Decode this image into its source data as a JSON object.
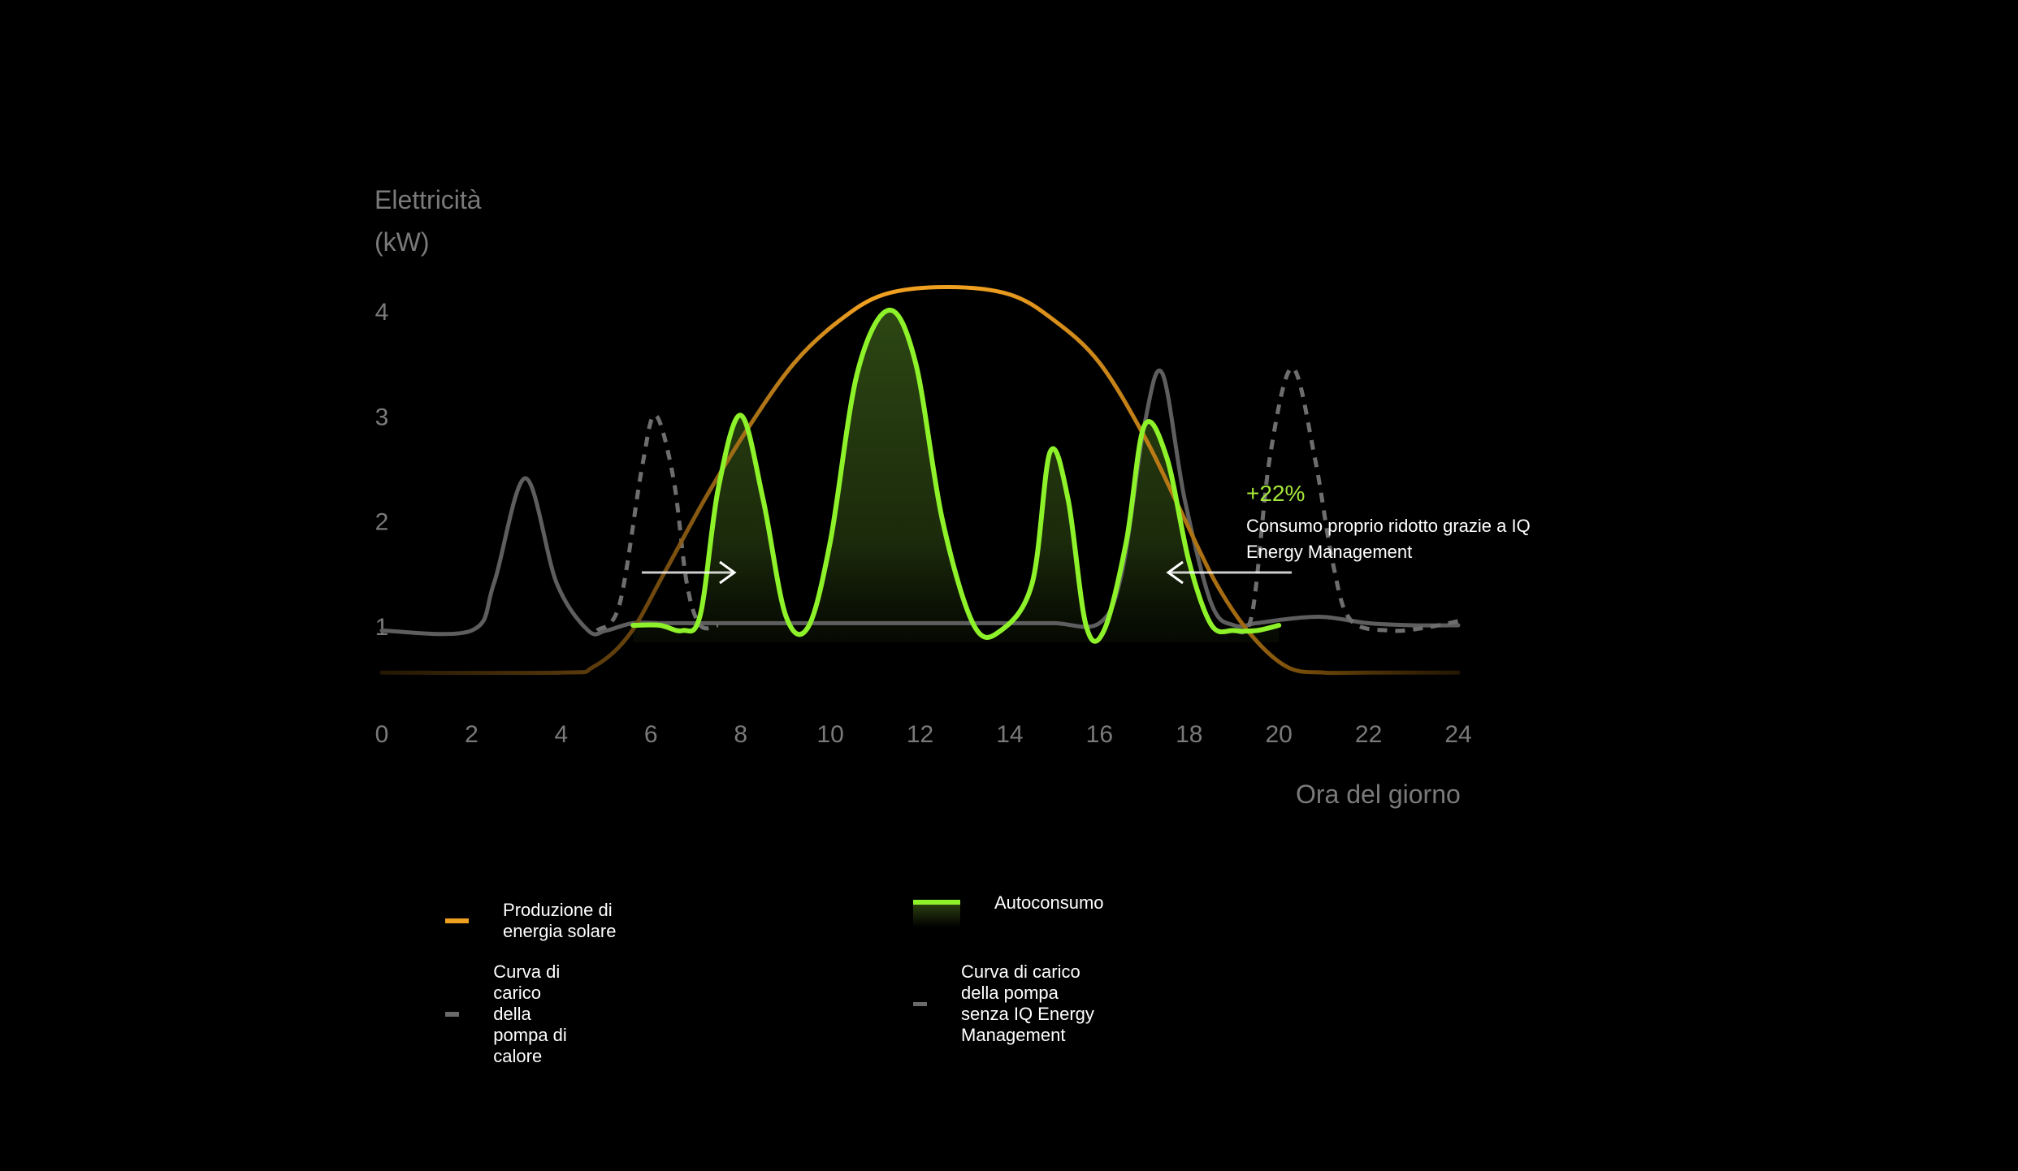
{
  "chart_data": {
    "type": "line",
    "ylabel_line1": "Elettricità",
    "ylabel_line2": "(kW)",
    "xlabel": "Ora del giorno",
    "x_ticks": [
      "0",
      "2",
      "4",
      "6",
      "8",
      "10",
      "12",
      "14",
      "16",
      "18",
      "20",
      "22",
      "24"
    ],
    "y_ticks": [
      "1",
      "2",
      "3",
      "4"
    ],
    "xlim": [
      0,
      24
    ],
    "ylim": [
      0.5,
      4.5
    ],
    "colors": {
      "solar": "#f0a020",
      "heat_pump": "#5e5e5e",
      "heat_pump_dashed": "#6e6e6e",
      "autoconsumo": "#8ef22a",
      "annotation": "#a5e83a"
    },
    "series": [
      {
        "name": "Produzione di energia solare",
        "style": "solid",
        "x": [
          0,
          4,
          4.7,
          5.5,
          6.3,
          7.2,
          8.2,
          9.2,
          10.2,
          11.2,
          12.6,
          14,
          15,
          16,
          17,
          17.8,
          18.6,
          19.4,
          20.2,
          21,
          22,
          24
        ],
        "y": [
          0.55,
          0.55,
          0.6,
          0.9,
          1.5,
          2.2,
          2.9,
          3.5,
          3.9,
          4.15,
          4.22,
          4.15,
          3.9,
          3.5,
          2.8,
          2.1,
          1.4,
          0.9,
          0.6,
          0.55,
          0.55,
          0.55
        ]
      },
      {
        "name": "Curva di carico della pompa di calore",
        "style": "solid",
        "x": [
          0,
          2,
          2.5,
          3.2,
          3.9,
          4.6,
          5,
          5.6,
          6.3,
          7,
          8,
          9,
          10,
          11,
          12,
          13,
          14,
          15,
          16,
          16.5,
          17,
          17.4,
          17.9,
          18.5,
          19,
          19.5,
          20.2,
          21,
          22,
          23,
          24
        ],
        "y": [
          0.95,
          0.95,
          1.4,
          2.4,
          1.4,
          0.95,
          0.95,
          1.02,
          1.02,
          1.02,
          1.02,
          1.02,
          1.02,
          1.02,
          1.02,
          1.02,
          1.02,
          1.02,
          1.02,
          1.5,
          2.9,
          3.4,
          2.2,
          1.2,
          1.0,
          1.02,
          1.06,
          1.08,
          1.02,
          1.0,
          1.0
        ]
      },
      {
        "name": "Curva di carico della pompa senza IQ Energy Management",
        "style": "dashed",
        "x": [
          4.8,
          5.3,
          5.8,
          6.1,
          6.5,
          6.8,
          7.1,
          7.5,
          19,
          19.4,
          19.8,
          20.3,
          20.8,
          21.2,
          21.6,
          22.5,
          23.3,
          24
        ],
        "y": [
          0.95,
          1.2,
          2.5,
          3.0,
          2.4,
          1.4,
          1.0,
          1.0,
          0.95,
          1.1,
          2.6,
          3.45,
          2.6,
          1.6,
          1.05,
          0.95,
          0.98,
          1.04
        ]
      },
      {
        "name": "Autoconsumo",
        "style": "filled",
        "x": [
          5.6,
          6.2,
          6.7,
          7.1,
          7.5,
          8,
          8.5,
          9,
          9.5,
          10,
          10.6,
          11.3,
          11.9,
          12.5,
          13.2,
          13.8,
          14.5,
          14.9,
          15.3,
          15.7,
          16.1,
          16.6,
          17,
          17.5,
          18,
          18.5,
          19,
          19.5,
          20
        ],
        "y": [
          1.0,
          1.0,
          0.95,
          1.1,
          2.3,
          3.0,
          2.2,
          1.1,
          0.98,
          1.8,
          3.4,
          4.0,
          3.5,
          2.0,
          1.0,
          0.95,
          1.4,
          2.65,
          2.2,
          1.0,
          0.95,
          1.8,
          2.9,
          2.6,
          1.6,
          1.0,
          0.95,
          0.95,
          1.0
        ]
      }
    ],
    "annotation": {
      "value": "+22%",
      "text": "Consumo proprio ridotto grazie a IQ Energy Management"
    }
  },
  "legend": {
    "solar": "Produzione di energia solare",
    "autoconsumo": "Autoconsumo",
    "heat_pump": "Curva di carico della pompa di calore",
    "heat_pump_dashed": "Curva di carico della pompa senza IQ Energy Management"
  }
}
